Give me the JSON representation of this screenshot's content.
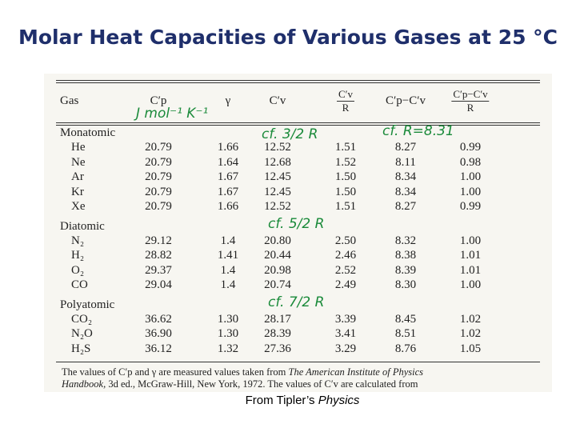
{
  "title": "Molar Heat Capacities of Various Gases at 25 °C",
  "table": {
    "header": [
      "Gas",
      "C′p",
      "γ",
      "C′v",
      {
        "numerator": "C′v",
        "denominator": "R"
      },
      "C′p−C′v",
      {
        "numerator": "C′p−C′v",
        "denominator": "R"
      }
    ],
    "groups": [
      {
        "name": "Monatomic",
        "rows": [
          [
            "He",
            "20.79",
            "1.66",
            "12.52",
            "1.51",
            "8.27",
            "0.99"
          ],
          [
            "Ne",
            "20.79",
            "1.64",
            "12.68",
            "1.52",
            "8.11",
            "0.98"
          ],
          [
            "Ar",
            "20.79",
            "1.67",
            "12.45",
            "1.50",
            "8.34",
            "1.00"
          ],
          [
            "Kr",
            "20.79",
            "1.67",
            "12.45",
            "1.50",
            "8.34",
            "1.00"
          ],
          [
            "Xe",
            "20.79",
            "1.66",
            "12.52",
            "1.51",
            "8.27",
            "0.99"
          ]
        ]
      },
      {
        "name": "Diatomic",
        "rows": [
          [
            "N₂",
            "29.12",
            "1.4",
            "20.80",
            "2.50",
            "8.32",
            "1.00"
          ],
          [
            "H₂",
            "28.82",
            "1.41",
            "20.44",
            "2.46",
            "8.38",
            "1.01"
          ],
          [
            "O₂",
            "29.37",
            "1.4",
            "20.98",
            "2.52",
            "8.39",
            "1.01"
          ],
          [
            "CO",
            "29.04",
            "1.4",
            "20.74",
            "2.49",
            "8.30",
            "1.00"
          ]
        ]
      },
      {
        "name": "Polyatomic",
        "rows": [
          [
            "CO₂",
            "36.62",
            "1.30",
            "28.17",
            "3.39",
            "8.45",
            "1.02"
          ],
          [
            "N₂O",
            "36.90",
            "1.30",
            "28.39",
            "3.41",
            "8.51",
            "1.02"
          ],
          [
            "H₂S",
            "36.12",
            "1.32",
            "27.36",
            "3.29",
            "8.76",
            "1.05"
          ]
        ]
      }
    ],
    "footnote": {
      "line1": "The values of C′p and γ are measured values taken from",
      "line1_italic": "The American Institute of Physics",
      "line2_italic": "Handbook,",
      "line2": "3d ed., McGraw-Hill, New York, 1972. The values of C′v are calculated from"
    }
  },
  "annotations": [
    "J mol⁻¹ K⁻¹",
    "cf. 3/2 R",
    "cf. R=8.31",
    "cf. 5/2 R",
    "cf. 7/2 R"
  ],
  "caption": {
    "text": "From Tipler’s",
    "italic": "Physics"
  }
}
